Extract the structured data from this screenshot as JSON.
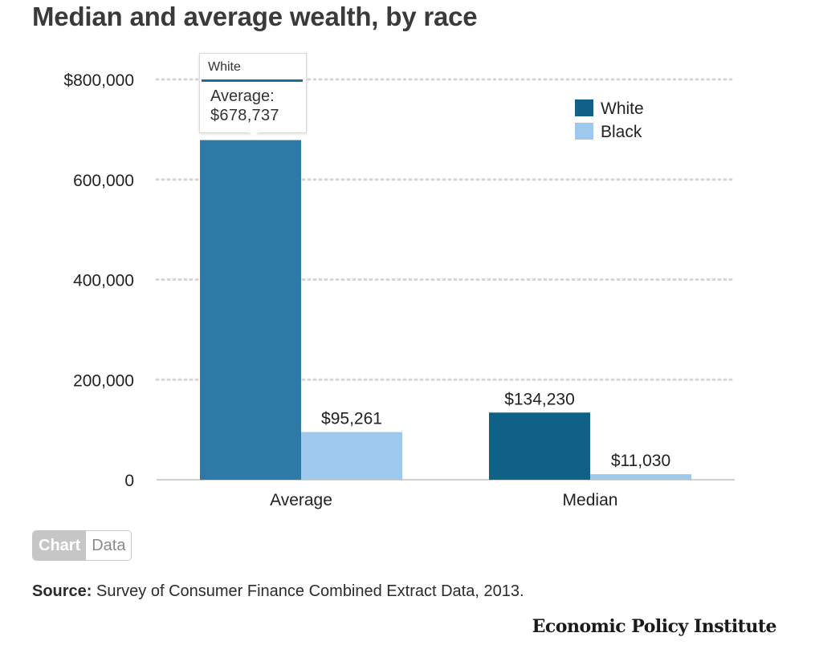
{
  "title": "Median and average wealth, by race",
  "chart_data": {
    "type": "bar",
    "categories": [
      "Average",
      "Median"
    ],
    "series": [
      {
        "name": "White",
        "values": [
          678737,
          134230
        ],
        "color": "#2e7aa6"
      },
      {
        "name": "Black",
        "values": [
          95261,
          11030
        ],
        "color": "#9ec8ec"
      }
    ],
    "data_labels": [
      [
        null,
        "$134,230"
      ],
      [
        "$95,261",
        "$11,030"
      ]
    ],
    "ylim": [
      0,
      800000
    ],
    "yticks": [
      0,
      200000,
      400000,
      600000,
      800000
    ],
    "ytick_labels": [
      "0",
      "200,000",
      "400,000",
      "600,000",
      "$800,000"
    ],
    "xlabel": "",
    "ylabel": "",
    "grid": true,
    "legend_position": "top-right",
    "highlighted_bar_color": "#0f6187"
  },
  "tooltip": {
    "series": "White",
    "metric": "Average:",
    "value": "$678,737"
  },
  "toggle": {
    "chart_label": "Chart",
    "data_label": "Data"
  },
  "source": {
    "prefix": "Source:",
    "text": " Survey of Consumer Finance Combined Extract Data, 2013."
  },
  "logo": "Economic Policy Institute"
}
